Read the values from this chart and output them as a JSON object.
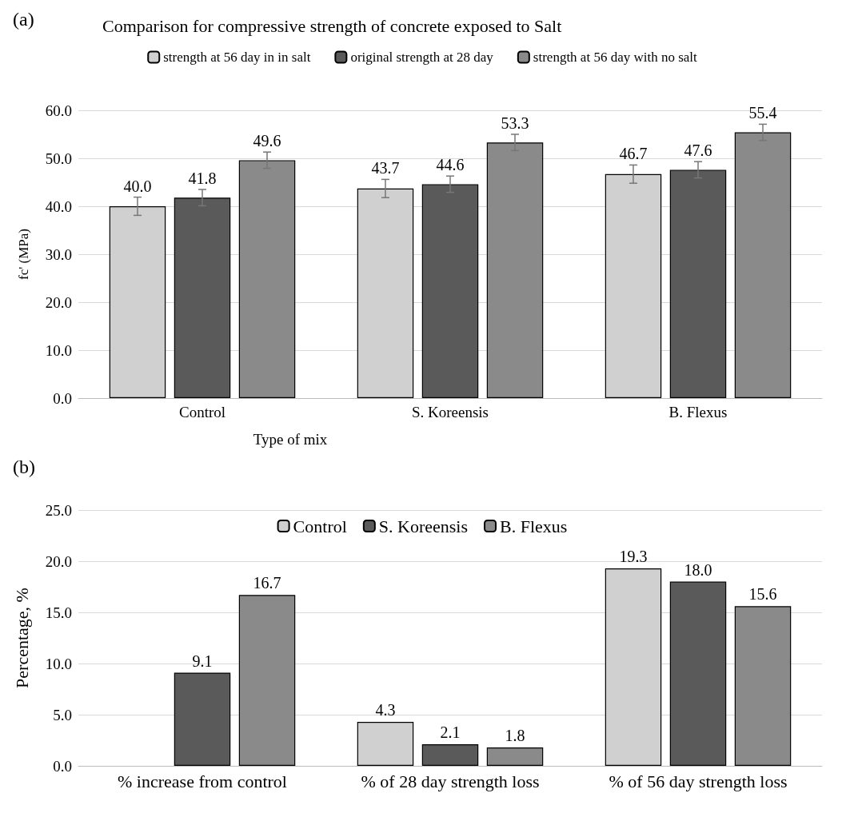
{
  "chart_data": [
    {
      "type": "bar",
      "title": "Comparison for compressive strength of concrete exposed to Salt",
      "annotations": [
        "(a)"
      ],
      "xlabel": "Type of mix",
      "ylabel": "fc' (MPa)",
      "categories": [
        "Control",
        "S. Koreensis",
        "B. Flexus"
      ],
      "series": [
        {
          "name": "strength at 56 day in in salt",
          "color": "#d0d0d0",
          "values": [
            40.0,
            43.7,
            46.7
          ],
          "value_labels": [
            "40.0",
            "43.7",
            "46.7"
          ],
          "errors": [
            1.9,
            1.9,
            1.9
          ]
        },
        {
          "name": "original strength at 28 day",
          "color": "#5a5a5a",
          "values": [
            41.8,
            44.6,
            47.6
          ],
          "value_labels": [
            "41.8",
            "44.6",
            "47.6"
          ],
          "errors": [
            1.7,
            1.7,
            1.7
          ]
        },
        {
          "name": "strength at 56 day with no salt",
          "color": "#8a8a8a",
          "values": [
            49.6,
            53.3,
            55.4
          ],
          "value_labels": [
            "49.6",
            "53.3",
            "55.4"
          ],
          "errors": [
            1.7,
            1.7,
            1.7
          ]
        }
      ],
      "ylim": [
        0,
        60
      ],
      "yticks": [
        {
          "value": 0,
          "label": "0.0"
        },
        {
          "value": 10,
          "label": "10.0"
        },
        {
          "value": 20,
          "label": "20.0"
        },
        {
          "value": 30,
          "label": "30.0"
        },
        {
          "value": 40,
          "label": "40.0"
        },
        {
          "value": 50,
          "label": "50.0"
        },
        {
          "value": 60,
          "label": "60.0"
        }
      ],
      "grid": "y",
      "legend": "top"
    },
    {
      "type": "bar",
      "annotations": [
        "(b)"
      ],
      "ylabel": "Percentage, %",
      "categories": [
        "% increase from control",
        "% of 28 day strength loss",
        "% of 56 day strength loss"
      ],
      "series": [
        {
          "name": "Control",
          "color": "#d0d0d0",
          "values": [
            null,
            4.3,
            19.3
          ],
          "value_labels": [
            null,
            "4.3",
            "19.3"
          ]
        },
        {
          "name": "S. Koreensis",
          "color": "#5a5a5a",
          "values": [
            9.1,
            2.1,
            18.0
          ],
          "value_labels": [
            "9.1",
            "2.1",
            "18.0"
          ]
        },
        {
          "name": "B. Flexus",
          "color": "#8a8a8a",
          "values": [
            16.7,
            1.8,
            15.6
          ],
          "value_labels": [
            "16.7",
            "1.8",
            "15.6"
          ]
        }
      ],
      "ylim": [
        0,
        25
      ],
      "yticks": [
        {
          "value": 0,
          "label": "0.0"
        },
        {
          "value": 5,
          "label": "5.0"
        },
        {
          "value": 10,
          "label": "10.0"
        },
        {
          "value": 15,
          "label": "15.0"
        },
        {
          "value": 20,
          "label": "20.0"
        },
        {
          "value": 25,
          "label": "25.0"
        }
      ],
      "grid": "y",
      "legend": "top"
    }
  ]
}
